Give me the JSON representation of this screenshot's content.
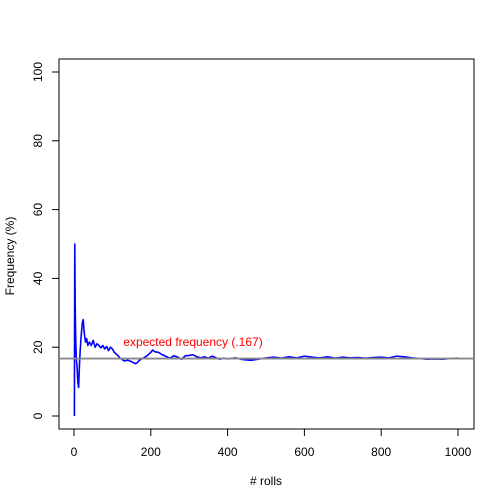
{
  "chart_data": {
    "type": "line",
    "title": "",
    "xlabel": "# rolls",
    "ylabel": "Frequency (%)",
    "xlim": [
      0,
      1000
    ],
    "ylim": [
      0,
      100
    ],
    "x_ticks": [
      0,
      200,
      400,
      600,
      800,
      1000
    ],
    "y_ticks": [
      0,
      20,
      40,
      60,
      80,
      100
    ],
    "grid": false,
    "legend": "none",
    "series": [
      {
        "color": "#0000ff",
        "x": [
          1,
          2,
          3,
          4,
          5,
          6,
          8,
          10,
          12,
          14,
          16,
          18,
          20,
          22,
          24,
          26,
          28,
          30,
          33,
          36,
          40,
          45,
          50,
          55,
          60,
          65,
          70,
          75,
          80,
          85,
          90,
          95,
          100,
          105,
          110,
          115,
          120,
          125,
          130,
          140,
          150,
          160,
          165,
          170,
          180,
          190,
          200,
          205,
          210,
          220,
          230,
          240,
          250,
          260,
          270,
          280,
          290,
          300,
          310,
          320,
          330,
          340,
          350,
          360,
          370,
          380,
          390,
          400,
          420,
          440,
          460,
          480,
          500,
          520,
          540,
          560,
          580,
          600,
          620,
          640,
          660,
          680,
          700,
          720,
          740,
          760,
          780,
          800,
          820,
          840,
          860,
          880,
          900,
          920,
          940,
          960,
          980,
          1000
        ],
        "y": [
          0,
          50,
          33.3,
          25,
          20,
          16.7,
          14.3,
          10,
          8.3,
          14.3,
          18.8,
          22.2,
          25,
          27.3,
          28,
          25,
          23,
          21.5,
          22.5,
          20.5,
          21.5,
          20.5,
          22,
          20,
          21,
          20.5,
          19.8,
          20.5,
          19.5,
          20.2,
          19,
          20,
          19.5,
          18.5,
          18,
          17.5,
          16.8,
          16.5,
          16,
          16.2,
          15.8,
          15.2,
          15.5,
          16.2,
          16.8,
          17.5,
          18.5,
          19.2,
          18.7,
          18.5,
          17.8,
          17.3,
          16.8,
          17.5,
          17.1,
          16.5,
          17.5,
          17.6,
          17.8,
          17.2,
          16.9,
          17.2,
          16.8,
          17.4,
          16.9,
          16.5,
          16.8,
          16.6,
          16.9,
          16.4,
          16.2,
          16.5,
          16.9,
          17.1,
          16.8,
          17.2,
          16.9,
          17.4,
          17.1,
          16.9,
          17.2,
          16.8,
          17.1,
          16.9,
          17,
          16.8,
          17,
          17.1,
          16.9,
          17.4,
          17.2,
          16.9,
          16.7,
          16.5,
          16.6,
          16.5,
          16.7,
          16.8
        ]
      }
    ],
    "reference_line": {
      "y": 16.7,
      "color": "#888888",
      "label": "expected frequency (.167)",
      "label_color": "#ff0000",
      "label_x": 500,
      "label_y": 19.8
    }
  }
}
